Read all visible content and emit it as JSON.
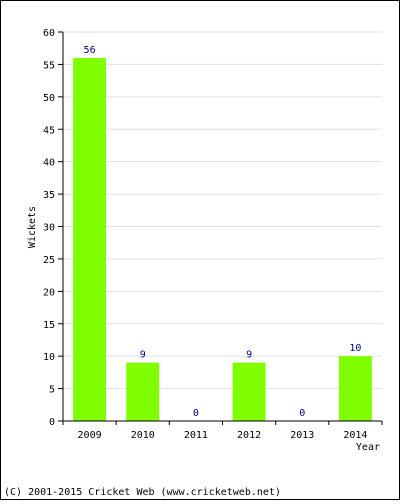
{
  "chart_data": {
    "type": "bar",
    "categories": [
      "2009",
      "2010",
      "2011",
      "2012",
      "2013",
      "2014"
    ],
    "values": [
      56,
      9,
      0,
      9,
      0,
      10
    ],
    "xlabel": "Year",
    "ylabel": "Wickets",
    "ylim": [
      0,
      60
    ],
    "yticks": [
      0,
      5,
      10,
      15,
      20,
      25,
      30,
      35,
      40,
      45,
      50,
      55,
      60
    ],
    "grid": true,
    "bar_color": "#80ff00",
    "label_color": "#000080"
  },
  "footer": {
    "copyright": "(C) 2001-2015 Cricket Web (www.cricketweb.net)"
  }
}
